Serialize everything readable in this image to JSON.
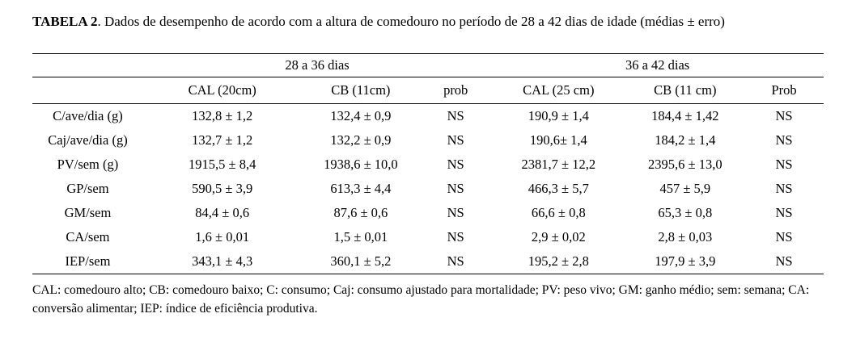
{
  "page": {
    "background": "#ffffff",
    "text_color": "#000000"
  },
  "title": {
    "label": "TABELA 2",
    "text": ". Dados de desempenho de acordo com a altura de comedouro no período de 28 a 42 dias de idade (médias ± erro)"
  },
  "table": {
    "group_headers": [
      "28 a 36 dias",
      "36 a 42 dias"
    ],
    "column_headers": [
      "CAL (20cm)",
      "CB (11cm)",
      "prob",
      "CAL (25 cm)",
      "CB (11 cm)",
      "Prob"
    ],
    "rows": [
      {
        "label": "C/ave/dia (g)",
        "values": [
          "132,8 ± 1,2",
          "132,4 ± 0,9",
          "NS",
          "190,9 ± 1,4",
          "184,4 ± 1,42",
          "NS"
        ]
      },
      {
        "label": "Caj/ave/dia (g)",
        "values": [
          "132,7 ± 1,2",
          "132,2 ± 0,9",
          "NS",
          "190,6± 1,4",
          "184,2 ± 1,4",
          "NS"
        ]
      },
      {
        "label": "PV/sem (g)",
        "values": [
          "1915,5 ± 8,4",
          "1938,6 ± 10,0",
          "NS",
          "2381,7 ± 12,2",
          "2395,6 ± 13,0",
          "NS"
        ]
      },
      {
        "label": "GP/sem",
        "values": [
          "590,5 ± 3,9",
          "613,3 ± 4,4",
          "NS",
          "466,3 ± 5,7",
          "457 ± 5,9",
          "NS"
        ]
      },
      {
        "label": "GM/sem",
        "values": [
          "84,4 ± 0,6",
          "87,6 ± 0,6",
          "NS",
          "66,6 ± 0,8",
          "65,3 ± 0,8",
          "NS"
        ]
      },
      {
        "label": "CA/sem",
        "values": [
          "1,6 ± 0,01",
          "1,5 ± 0,01",
          "NS",
          "2,9 ± 0,02",
          "2,8 ± 0,03",
          "NS"
        ]
      },
      {
        "label": "IEP/sem",
        "values": [
          "343,1 ± 4,3",
          "360,1 ± 5,2",
          "NS",
          "195,2 ± 2,8",
          "197,9 ± 3,9",
          "NS"
        ]
      }
    ]
  },
  "footnote": "CAL: comedouro alto; CB: comedouro baixo; C: consumo; Caj: consumo ajustado para mortalidade; PV: peso vivo; GM: ganho médio; sem: semana; CA: conversão alimentar; IEP: índice de eficiência produtiva."
}
